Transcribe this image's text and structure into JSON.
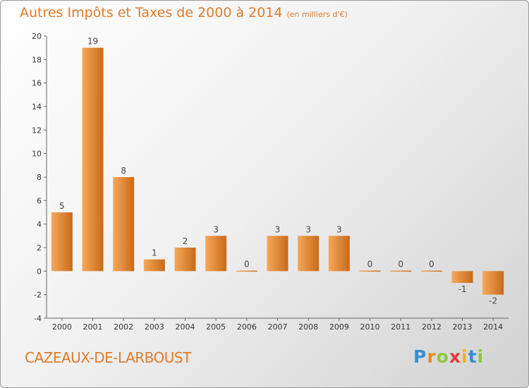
{
  "header": {
    "title": "Autres Impôts et Taxes de 2000 à 2014",
    "subtitle": "(en milliers d'€)"
  },
  "footer": {
    "place": "CAZEAUX-DE-LARBOUST",
    "logo_letters": [
      "P",
      "r",
      "o",
      "x",
      "i",
      "t",
      "i"
    ],
    "logo_colors": [
      "#3a8fd0",
      "#e8871f",
      "#8dc63f",
      "#e03a3a",
      "#f2b21b",
      "#3a8fd0",
      "#8dc63f"
    ]
  },
  "colors": {
    "bar_light": "#f6a85a",
    "bar_dark": "#c76a1a",
    "axis": "#666666",
    "accent": "#e07b2a"
  },
  "chart_data": {
    "type": "bar",
    "title": "Autres Impôts et Taxes de 2000 à 2014",
    "subtitle": "(en milliers d'€)",
    "xlabel": "",
    "ylabel": "",
    "categories": [
      "2000",
      "2001",
      "2002",
      "2003",
      "2004",
      "2005",
      "2006",
      "2007",
      "2008",
      "2009",
      "2010",
      "2011",
      "2012",
      "2013",
      "2014"
    ],
    "values": [
      5,
      19,
      8,
      1,
      2,
      3,
      0,
      3,
      3,
      3,
      0,
      0,
      0,
      -1,
      -2
    ],
    "data_labels": [
      "5",
      "19",
      "8",
      "1",
      "2",
      "3",
      "0",
      "3",
      "3",
      "3",
      "0",
      "0",
      "0",
      "-1",
      "-2"
    ],
    "ylim": [
      -4,
      20
    ],
    "yticks": [
      -4,
      -2,
      0,
      2,
      4,
      6,
      8,
      10,
      12,
      14,
      16,
      18,
      20
    ],
    "grid": false,
    "legend": "none"
  }
}
